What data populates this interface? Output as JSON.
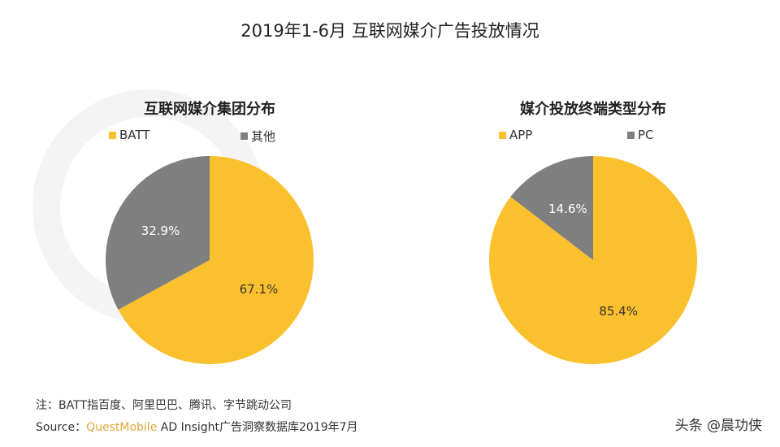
{
  "title": "2019年1-6月 互联网媒介广告投放情况",
  "watermark": "QUEST MOBILE",
  "colors": {
    "yellow": "#FBC02D",
    "gray": "#7F7F7F"
  },
  "chart_data": [
    {
      "type": "pie",
      "title": "互联网媒介集团分布",
      "legend_placement": "top",
      "slices": [
        {
          "name": "BATT",
          "value": 67.1,
          "label": "67.1%",
          "color": "#FBC02D"
        },
        {
          "name": "其他",
          "value": 32.9,
          "label": "32.9%",
          "color": "#7F7F7F"
        }
      ]
    },
    {
      "type": "pie",
      "title": "媒介投放终端类型分布",
      "legend_placement": "top",
      "slices": [
        {
          "name": "APP",
          "value": 85.4,
          "label": "85.4%",
          "color": "#FBC02D"
        },
        {
          "name": "PC",
          "value": 14.6,
          "label": "14.6%",
          "color": "#7F7F7F"
        }
      ]
    }
  ],
  "footer": {
    "note": "注：BATT指百度、阿里巴巴、腾讯、字节跳动公司",
    "source_prefix": "Source：",
    "source_brand": "QuestMobile",
    "source_rest": " AD Insight广告洞察数据库2019年7月",
    "credit": "头条 @晨功侠"
  }
}
